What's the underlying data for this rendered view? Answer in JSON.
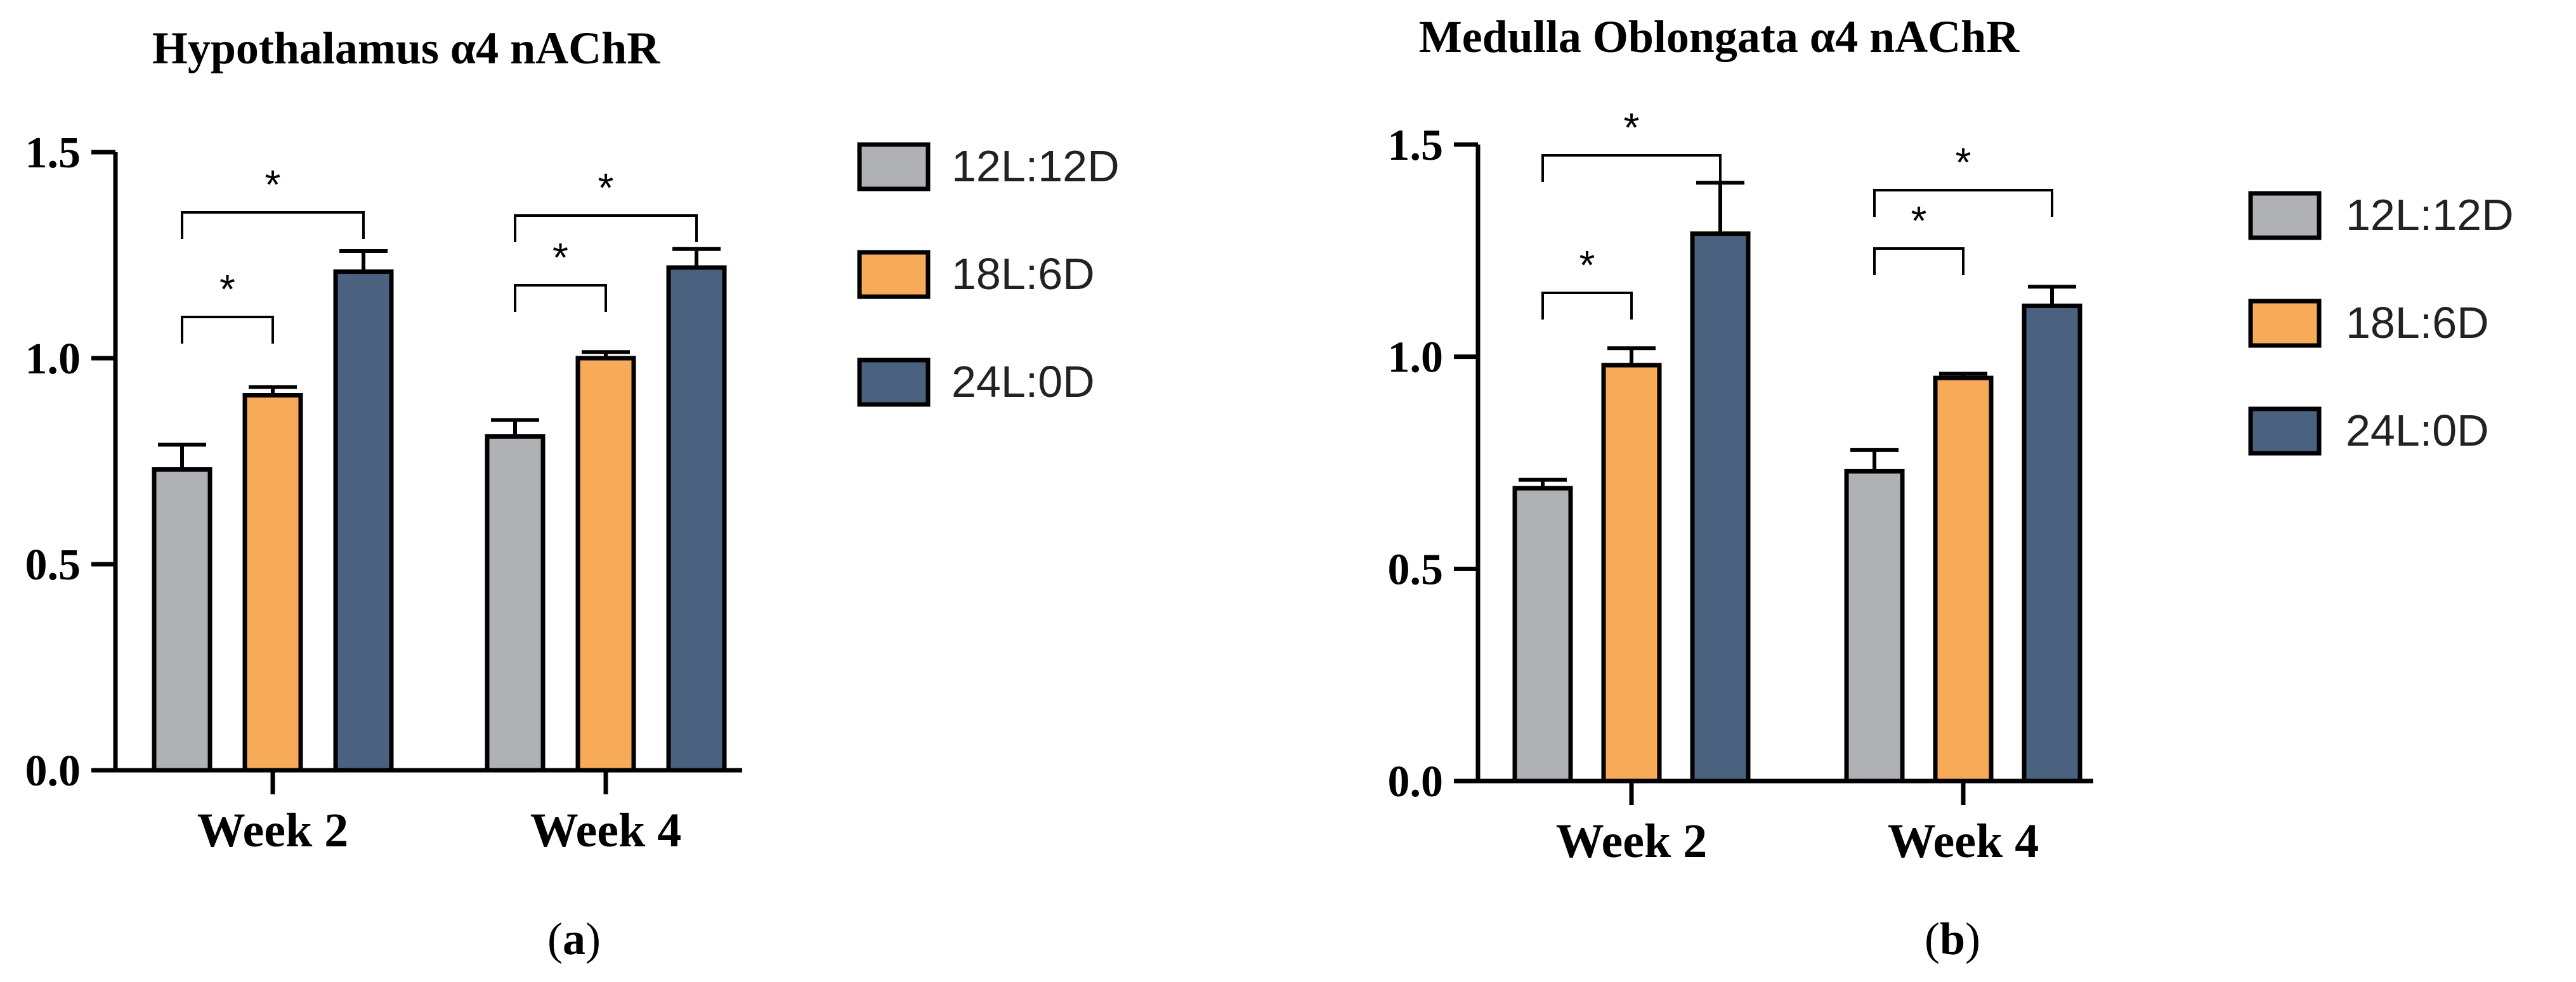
{
  "chart_data": [
    {
      "type": "bar",
      "panel": "a",
      "title": "Hypothalamus α4 nAChR",
      "categories": [
        "Week 2",
        "Week 4"
      ],
      "series": [
        {
          "name": "12L:12D",
          "values": [
            0.73,
            0.81
          ],
          "errors": [
            0.06,
            0.04
          ]
        },
        {
          "name": "18L:6D",
          "values": [
            0.91,
            1.0
          ],
          "errors": [
            0.02,
            0.015
          ]
        },
        {
          "name": "24L:0D",
          "values": [
            1.21,
            1.22
          ],
          "errors": [
            0.05,
            0.045
          ]
        }
      ],
      "ylim": [
        0,
        1.5
      ],
      "yticks": [
        "0.0",
        "0.5",
        "1.0",
        "1.5"
      ],
      "significance": [
        {
          "group": 0,
          "from": 0,
          "to": 1,
          "label": "*"
        },
        {
          "group": 0,
          "from": 0,
          "to": 2,
          "label": "*"
        },
        {
          "group": 1,
          "from": 0,
          "to": 1,
          "label": "*"
        },
        {
          "group": 1,
          "from": 0,
          "to": 2,
          "label": "*"
        }
      ]
    },
    {
      "type": "bar",
      "panel": "b",
      "title": "Medulla Oblongata α4 nAChR",
      "categories": [
        "Week 2",
        "Week 4"
      ],
      "series": [
        {
          "name": "12L:12D",
          "values": [
            0.69,
            0.73
          ],
          "errors": [
            0.02,
            0.05
          ]
        },
        {
          "name": "18L:6D",
          "values": [
            0.98,
            0.95
          ],
          "errors": [
            0.04,
            0.01
          ]
        },
        {
          "name": "24L:0D",
          "values": [
            1.29,
            1.12
          ],
          "errors": [
            0.12,
            0.045
          ]
        }
      ],
      "ylim": [
        0,
        1.5
      ],
      "yticks": [
        "0.0",
        "0.5",
        "1.0",
        "1.5"
      ],
      "significance": [
        {
          "group": 0,
          "from": 0,
          "to": 1,
          "label": "*"
        },
        {
          "group": 0,
          "from": 0,
          "to": 2,
          "label": "*"
        },
        {
          "group": 1,
          "from": 0,
          "to": 1,
          "label": "*"
        },
        {
          "group": 1,
          "from": 0,
          "to": 2,
          "label": "*"
        }
      ]
    }
  ],
  "colors": {
    "12L:12D": "#b0b1b5",
    "18L:6D": "#f7aa57",
    "24L:0D": "#4a6280"
  },
  "panel_labels": {
    "a": {
      "open": "(",
      "letter": "a",
      "close": ")"
    },
    "b": {
      "open": "(",
      "letter": "b",
      "close": ")"
    }
  }
}
